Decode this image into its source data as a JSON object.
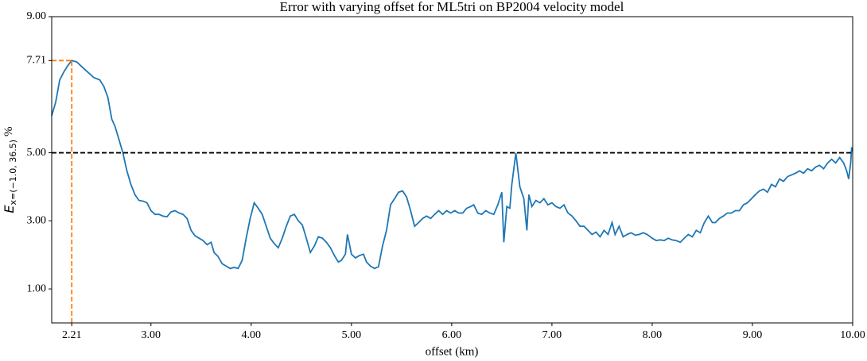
{
  "chart_data": {
    "type": "line",
    "title": "Error with varying offset for ML5tri on BP2004 velocity model",
    "xlabel": "offset (km)",
    "ylabel": {
      "symbol": "E",
      "subscript": "x=(−1.0, 36.5)",
      "unit": "%"
    },
    "x": [
      2.01,
      2.05,
      2.09,
      2.13,
      2.17,
      2.21,
      2.26,
      2.31,
      2.37,
      2.43,
      2.49,
      2.53,
      2.57,
      2.61,
      2.64,
      2.68,
      2.72,
      2.76,
      2.8,
      2.84,
      2.88,
      2.92,
      2.96,
      3.0,
      3.04,
      3.08,
      3.12,
      3.16,
      3.2,
      3.24,
      3.28,
      3.32,
      3.36,
      3.4,
      3.44,
      3.48,
      3.52,
      3.56,
      3.6,
      3.63,
      3.67,
      3.71,
      3.75,
      3.79,
      3.83,
      3.87,
      3.91,
      3.95,
      3.99,
      4.03,
      4.07,
      4.11,
      4.15,
      4.19,
      4.23,
      4.27,
      4.31,
      4.35,
      4.39,
      4.43,
      4.47,
      4.51,
      4.55,
      4.59,
      4.63,
      4.67,
      4.71,
      4.75,
      4.79,
      4.83,
      4.87,
      4.9,
      4.94,
      4.96,
      5.0,
      5.04,
      5.08,
      5.12,
      5.15,
      5.19,
      5.23,
      5.27,
      5.31,
      5.35,
      5.39,
      5.43,
      5.47,
      5.51,
      5.55,
      5.59,
      5.63,
      5.67,
      5.71,
      5.75,
      5.79,
      5.83,
      5.87,
      5.91,
      5.95,
      5.99,
      6.03,
      6.07,
      6.11,
      6.15,
      6.19,
      6.22,
      6.26,
      6.3,
      6.34,
      6.38,
      6.42,
      6.46,
      6.5,
      6.52,
      6.55,
      6.58,
      6.6,
      6.64,
      6.68,
      6.72,
      6.75,
      6.77,
      6.8,
      6.84,
      6.88,
      6.92,
      6.96,
      7.0,
      7.04,
      7.08,
      7.12,
      7.16,
      7.2,
      7.24,
      7.28,
      7.32,
      7.36,
      7.4,
      7.44,
      7.48,
      7.52,
      7.56,
      7.6,
      7.63,
      7.67,
      7.71,
      7.75,
      7.79,
      7.83,
      7.87,
      7.91,
      7.95,
      8.0,
      8.04,
      8.08,
      8.12,
      8.16,
      8.2,
      8.24,
      8.28,
      8.32,
      8.36,
      8.4,
      8.44,
      8.48,
      8.52,
      8.56,
      8.6,
      8.63,
      8.67,
      8.71,
      8.75,
      8.79,
      8.83,
      8.87,
      8.91,
      8.95,
      8.99,
      9.03,
      9.07,
      9.11,
      9.15,
      9.19,
      9.23,
      9.27,
      9.31,
      9.35,
      9.39,
      9.43,
      9.47,
      9.51,
      9.55,
      9.59,
      9.63,
      9.67,
      9.71,
      9.75,
      9.79,
      9.83,
      9.87,
      9.91,
      9.94,
      9.96,
      9.98,
      9.99,
      10.0
    ],
    "series": [
      {
        "color": "#1f77b4",
        "values": [
          6.09,
          6.49,
          7.14,
          7.37,
          7.56,
          7.71,
          7.67,
          7.53,
          7.37,
          7.21,
          7.14,
          6.95,
          6.63,
          5.98,
          5.79,
          5.4,
          5.0,
          4.47,
          4.07,
          3.77,
          3.6,
          3.58,
          3.53,
          3.3,
          3.19,
          3.19,
          3.14,
          3.12,
          3.26,
          3.3,
          3.23,
          3.19,
          3.07,
          2.72,
          2.56,
          2.49,
          2.42,
          2.3,
          2.37,
          2.07,
          1.95,
          1.74,
          1.67,
          1.6,
          1.63,
          1.6,
          1.84,
          2.49,
          3.07,
          3.53,
          3.37,
          3.19,
          2.84,
          2.49,
          2.33,
          2.21,
          2.49,
          2.84,
          3.14,
          3.19,
          3.0,
          2.88,
          2.49,
          2.07,
          2.26,
          2.53,
          2.49,
          2.37,
          2.21,
          1.98,
          1.79,
          1.84,
          2.02,
          2.6,
          2.02,
          1.91,
          1.98,
          2.02,
          1.79,
          1.67,
          1.6,
          1.65,
          2.26,
          2.72,
          3.47,
          3.65,
          3.84,
          3.88,
          3.7,
          3.3,
          2.84,
          2.95,
          3.07,
          3.14,
          3.07,
          3.19,
          3.3,
          3.19,
          3.3,
          3.23,
          3.3,
          3.23,
          3.23,
          3.37,
          3.42,
          3.47,
          3.23,
          3.19,
          3.3,
          3.23,
          3.19,
          3.47,
          3.84,
          2.37,
          3.42,
          3.37,
          4.07,
          5.0,
          4.0,
          3.65,
          2.72,
          3.77,
          3.42,
          3.6,
          3.53,
          3.65,
          3.47,
          3.53,
          3.42,
          3.37,
          3.47,
          3.23,
          3.14,
          3.0,
          2.84,
          2.84,
          2.72,
          2.6,
          2.67,
          2.53,
          2.72,
          2.6,
          2.95,
          2.6,
          2.84,
          2.53,
          2.6,
          2.65,
          2.58,
          2.6,
          2.65,
          2.6,
          2.49,
          2.42,
          2.44,
          2.42,
          2.49,
          2.44,
          2.42,
          2.37,
          2.49,
          2.6,
          2.53,
          2.72,
          2.65,
          2.95,
          3.14,
          2.95,
          2.95,
          3.07,
          3.14,
          3.23,
          3.23,
          3.3,
          3.3,
          3.47,
          3.53,
          3.65,
          3.77,
          3.88,
          3.93,
          3.84,
          4.07,
          4.0,
          4.23,
          4.16,
          4.3,
          4.35,
          4.4,
          4.47,
          4.4,
          4.53,
          4.47,
          4.58,
          4.63,
          4.53,
          4.7,
          4.81,
          4.7,
          4.86,
          4.7,
          4.47,
          4.23,
          4.7,
          5.16,
          5.05
        ]
      }
    ],
    "xlim": [
      2.01,
      10.0
    ],
    "ylim": [
      0,
      9
    ],
    "xticks": [
      {
        "value": 2.21,
        "label": "2.21"
      },
      {
        "value": 3,
        "label": "3.00"
      },
      {
        "value": 4,
        "label": "4.00"
      },
      {
        "value": 5,
        "label": "5.00"
      },
      {
        "value": 6,
        "label": "6.00"
      },
      {
        "value": 7,
        "label": "7.00"
      },
      {
        "value": 8,
        "label": "8.00"
      },
      {
        "value": 9,
        "label": "9.00"
      },
      {
        "value": 10,
        "label": "10.00"
      }
    ],
    "yticks": [
      {
        "value": 1,
        "label": "1.00"
      },
      {
        "value": 3,
        "label": "3.00"
      },
      {
        "value": 5,
        "label": "5.00"
      },
      {
        "value": 7.71,
        "label": "7.71"
      },
      {
        "value": 9,
        "label": "9.00"
      }
    ],
    "grid": false,
    "reference_line": {
      "y": 5.0,
      "color": "#000000"
    },
    "peak": {
      "x": 2.21,
      "y": 7.71,
      "color": "#ff7f0e"
    }
  }
}
